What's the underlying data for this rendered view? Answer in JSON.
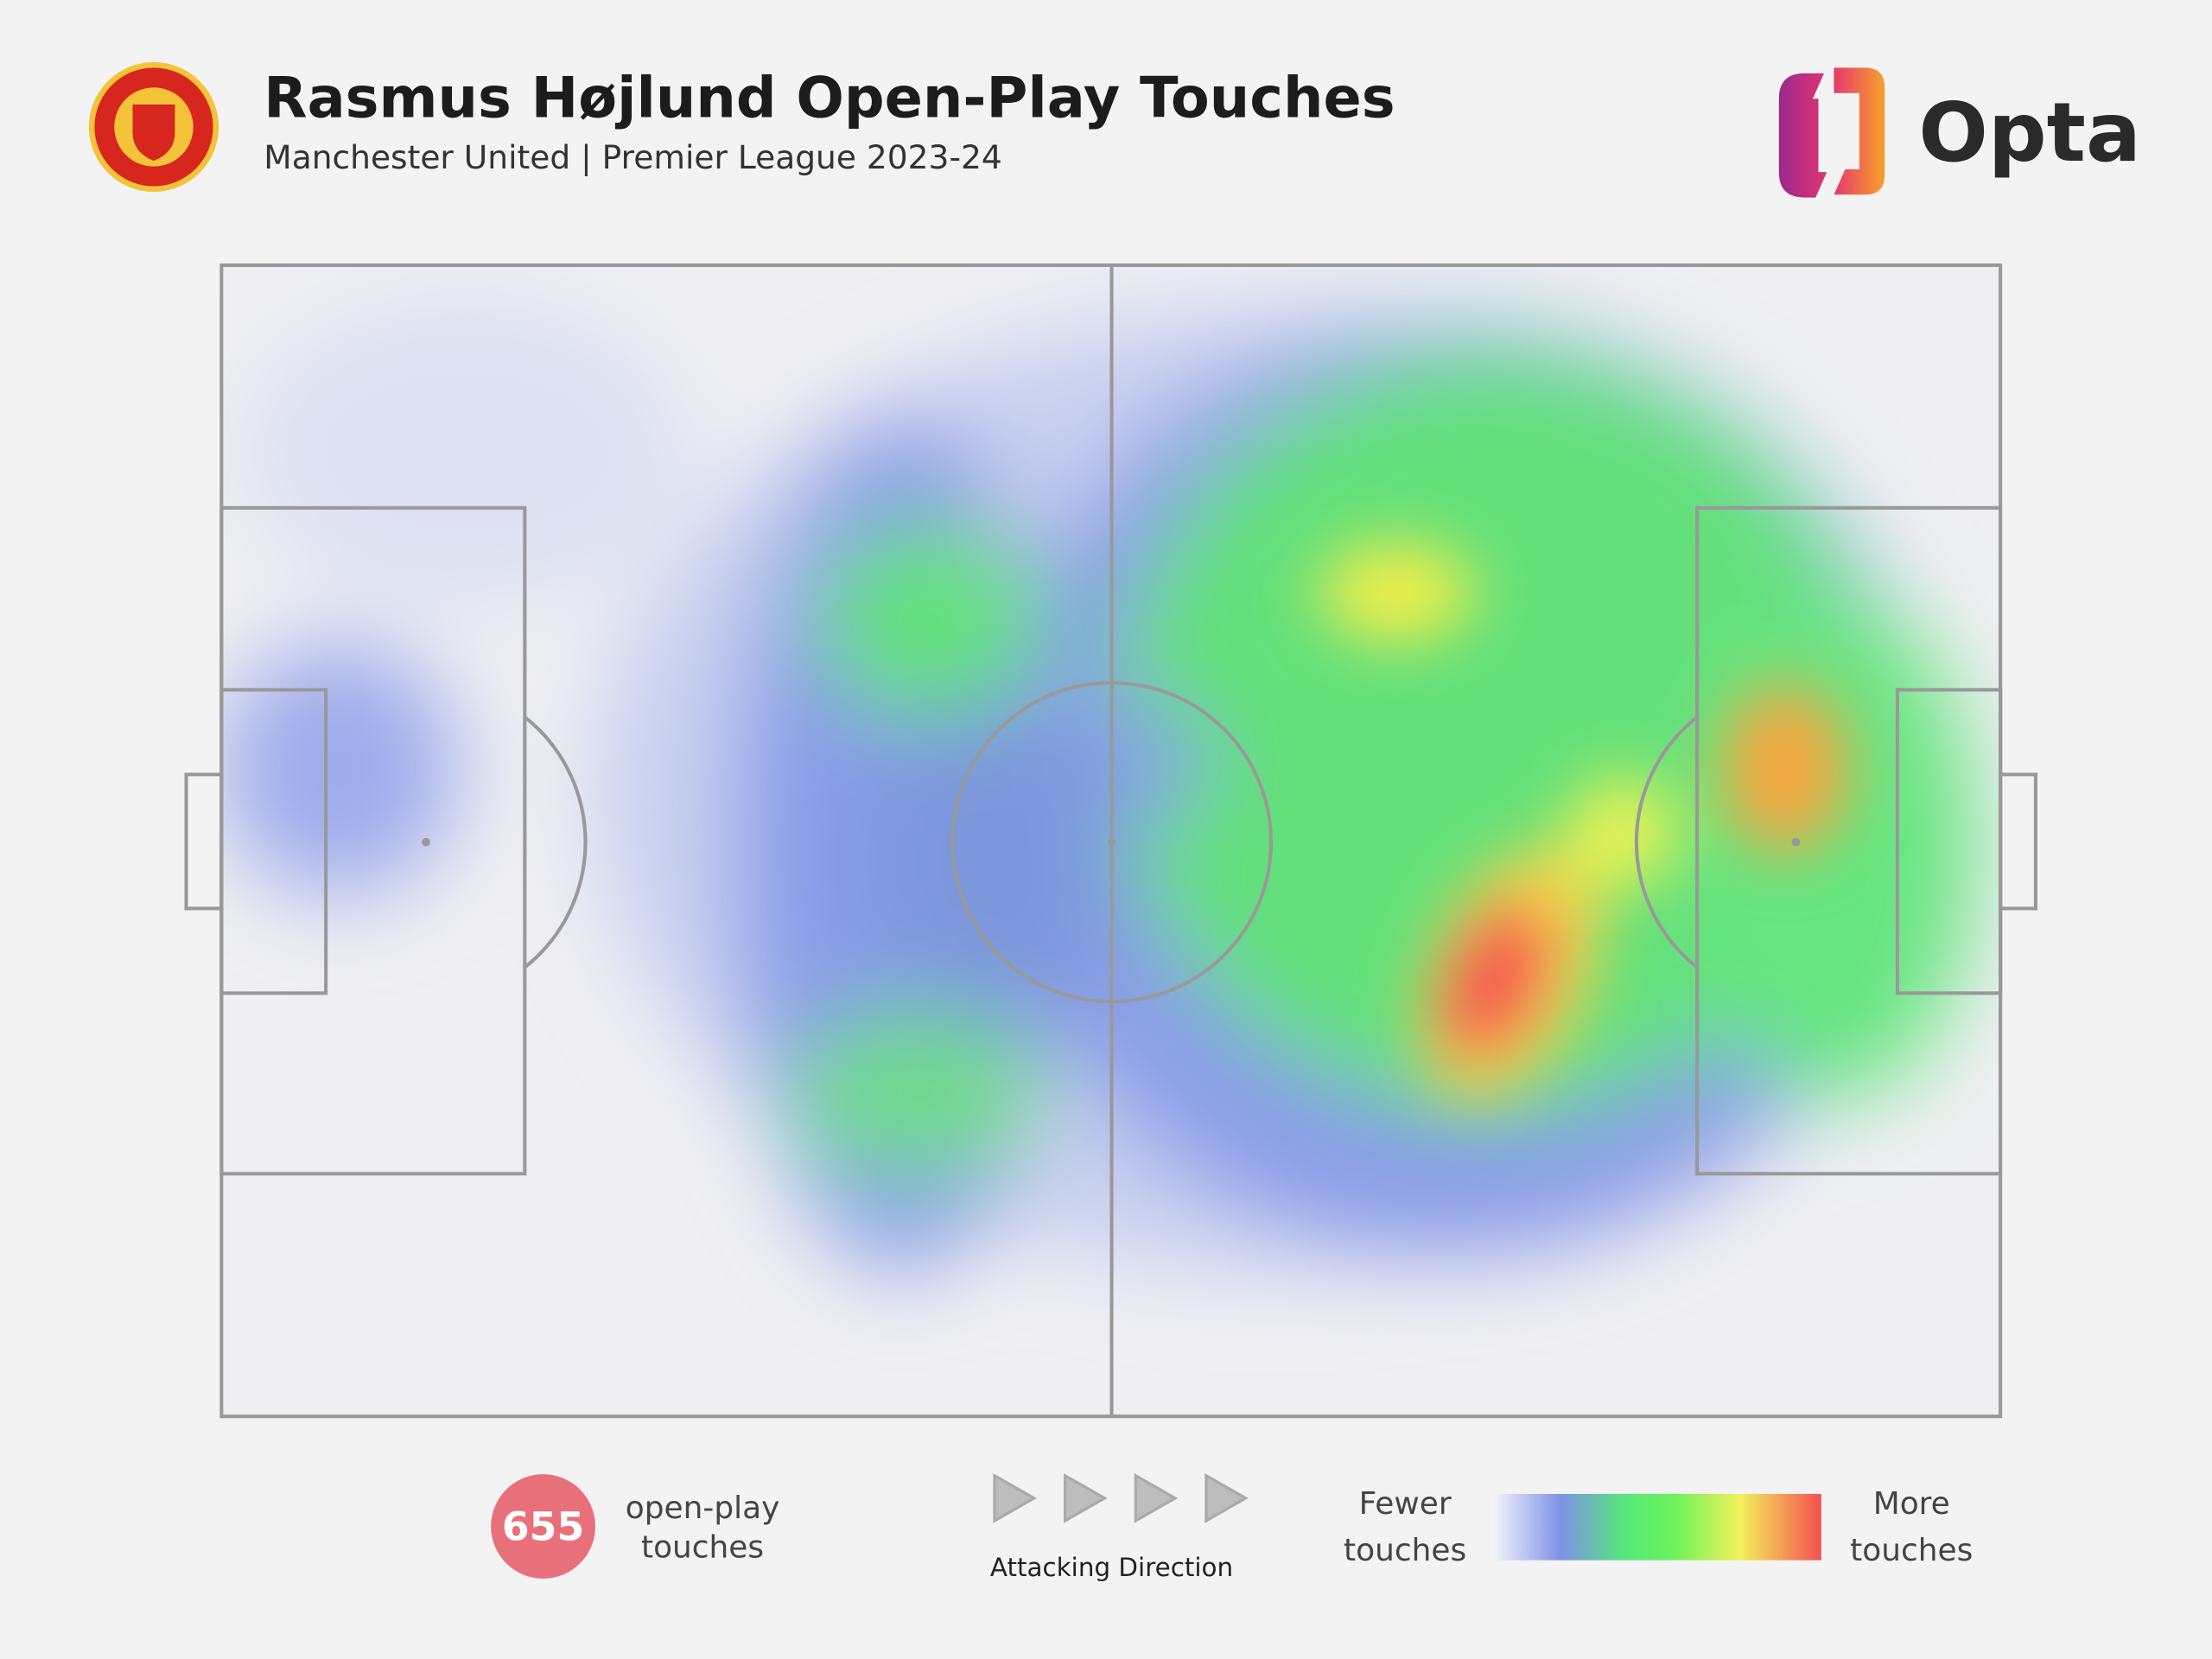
{
  "header": {
    "title": "Rasmus Højlund Open-Play Touches",
    "subtitle": "Manchester United | Premier League 2023-24",
    "brand": "Opta"
  },
  "stats": {
    "count": 655,
    "label_lines": [
      "open-play",
      "touches"
    ]
  },
  "direction": {
    "label": "Attacking Direction"
  },
  "legend": {
    "low_lines": [
      "Fewer",
      "touches"
    ],
    "high_lines": [
      "More",
      "touches"
    ]
  }
}
